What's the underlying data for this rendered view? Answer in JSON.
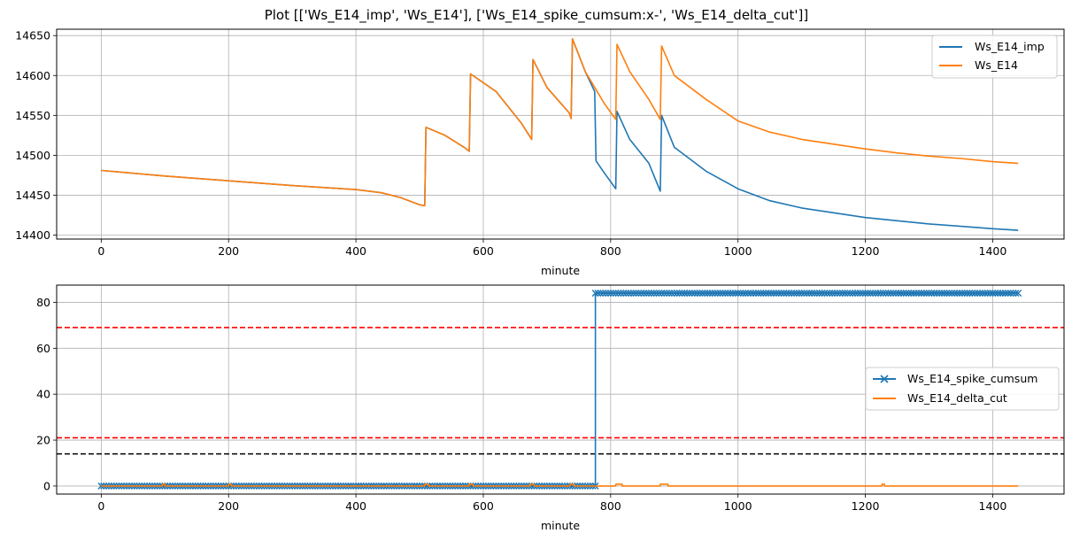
{
  "figure": {
    "title": "Plot [['Ws_E14_imp', 'Ws_E14'], ['Ws_E14_spike_cumsum:x-', 'Ws_E14_delta_cut']]"
  },
  "chart_data": [
    {
      "type": "line",
      "xlabel": "minute",
      "ylabel": "",
      "xlim": [
        -70,
        1512
      ],
      "ylim": [
        14395,
        14658
      ],
      "xticks": [
        0,
        200,
        400,
        600,
        800,
        1000,
        1200,
        1400
      ],
      "yticks": [
        14400,
        14450,
        14500,
        14550,
        14600,
        14650
      ],
      "grid": true,
      "legend": "top-right",
      "series": [
        {
          "name": "Ws_E14_imp",
          "color": "#1f77b4",
          "points": [
            [
              0,
              14481
            ],
            [
              100,
              14474
            ],
            [
              200,
              14468
            ],
            [
              300,
              14462
            ],
            [
              400,
              14457
            ],
            [
              440,
              14453
            ],
            [
              470,
              14447
            ],
            [
              500,
              14438
            ],
            [
              508,
              14437
            ],
            [
              510,
              14535
            ],
            [
              540,
              14525
            ],
            [
              570,
              14510
            ],
            [
              578,
              14505
            ],
            [
              580,
              14602
            ],
            [
              620,
              14580
            ],
            [
              660,
              14540
            ],
            [
              676,
              14520
            ],
            [
              678,
              14620
            ],
            [
              700,
              14585
            ],
            [
              735,
              14553
            ],
            [
              738,
              14546
            ],
            [
              740,
              14646
            ],
            [
              760,
              14605
            ],
            [
              775,
              14580
            ],
            [
              777,
              14493
            ],
            [
              790,
              14478
            ],
            [
              808,
              14458
            ],
            [
              810,
              14555
            ],
            [
              830,
              14520
            ],
            [
              860,
              14490
            ],
            [
              878,
              14455
            ],
            [
              880,
              14550
            ],
            [
              900,
              14510
            ],
            [
              950,
              14480
            ],
            [
              1000,
              14458
            ],
            [
              1050,
              14443
            ],
            [
              1100,
              14434
            ],
            [
              1150,
              14428
            ],
            [
              1200,
              14422
            ],
            [
              1250,
              14418
            ],
            [
              1300,
              14414
            ],
            [
              1350,
              14411
            ],
            [
              1400,
              14408
            ],
            [
              1440,
              14406
            ]
          ]
        },
        {
          "name": "Ws_E14",
          "color": "#ff7f0e",
          "points": [
            [
              0,
              14481
            ],
            [
              100,
              14474
            ],
            [
              200,
              14468
            ],
            [
              300,
              14462
            ],
            [
              400,
              14457
            ],
            [
              440,
              14453
            ],
            [
              470,
              14447
            ],
            [
              500,
              14438
            ],
            [
              508,
              14437
            ],
            [
              510,
              14535
            ],
            [
              540,
              14525
            ],
            [
              570,
              14510
            ],
            [
              578,
              14505
            ],
            [
              580,
              14602
            ],
            [
              620,
              14580
            ],
            [
              660,
              14540
            ],
            [
              676,
              14520
            ],
            [
              678,
              14620
            ],
            [
              700,
              14585
            ],
            [
              735,
              14553
            ],
            [
              738,
              14546
            ],
            [
              740,
              14646
            ],
            [
              760,
              14605
            ],
            [
              790,
              14565
            ],
            [
              808,
              14545
            ],
            [
              810,
              14639
            ],
            [
              830,
              14605
            ],
            [
              860,
              14570
            ],
            [
              878,
              14545
            ],
            [
              880,
              14637
            ],
            [
              900,
              14600
            ],
            [
              950,
              14570
            ],
            [
              1000,
              14543
            ],
            [
              1050,
              14529
            ],
            [
              1100,
              14520
            ],
            [
              1150,
              14514
            ],
            [
              1200,
              14508
            ],
            [
              1250,
              14503
            ],
            [
              1300,
              14499
            ],
            [
              1350,
              14496
            ],
            [
              1400,
              14492
            ],
            [
              1440,
              14490
            ]
          ]
        }
      ]
    },
    {
      "type": "line",
      "xlabel": "minute",
      "ylabel": "",
      "xlim": [
        -70,
        1512
      ],
      "ylim": [
        -3.5,
        87.5
      ],
      "xticks": [
        0,
        200,
        400,
        600,
        800,
        1000,
        1200,
        1400
      ],
      "yticks": [
        0,
        20,
        40,
        60,
        80
      ],
      "grid": true,
      "legend": "center-right",
      "series": [
        {
          "name": "Ws_E14_spike_cumsum",
          "color": "#1f77b4",
          "marker": "x",
          "points": [
            [
              0,
              0
            ],
            [
              776,
              0
            ],
            [
              776,
              84
            ],
            [
              1440,
              84
            ]
          ],
          "marker_step": 4
        },
        {
          "name": "Ws_E14_delta_cut",
          "color": "#ff7f0e",
          "points": [
            [
              0,
              0
            ],
            [
              96,
              0
            ],
            [
              96,
              0.8
            ],
            [
              100,
              0.8
            ],
            [
              100,
              0
            ],
            [
              200,
              0
            ],
            [
              200,
              0.8
            ],
            [
              204,
              0.8
            ],
            [
              204,
              0
            ],
            [
              508,
              0
            ],
            [
              508,
              0.8
            ],
            [
              514,
              0.8
            ],
            [
              514,
              0
            ],
            [
              578,
              0
            ],
            [
              578,
              0.8
            ],
            [
              584,
              0.8
            ],
            [
              584,
              0
            ],
            [
              674,
              0
            ],
            [
              674,
              0.8
            ],
            [
              680,
              0.8
            ],
            [
              680,
              0
            ],
            [
              736,
              0
            ],
            [
              736,
              0.8
            ],
            [
              742,
              0.8
            ],
            [
              742,
              0
            ],
            [
              808,
              0
            ],
            [
              808,
              0.8
            ],
            [
              818,
              0.8
            ],
            [
              818,
              0
            ],
            [
              878,
              0
            ],
            [
              878,
              0.8
            ],
            [
              890,
              0.8
            ],
            [
              890,
              0
            ],
            [
              1226,
              0
            ],
            [
              1226,
              0.8
            ],
            [
              1230,
              0.8
            ],
            [
              1230,
              0
            ],
            [
              1440,
              0
            ]
          ]
        }
      ],
      "hlines": [
        {
          "y": 69,
          "color": "#ff0000",
          "style": "dashed"
        },
        {
          "y": 21,
          "color": "#ff0000",
          "style": "dashed"
        },
        {
          "y": 14,
          "color": "#000000",
          "style": "dashed"
        }
      ]
    }
  ]
}
